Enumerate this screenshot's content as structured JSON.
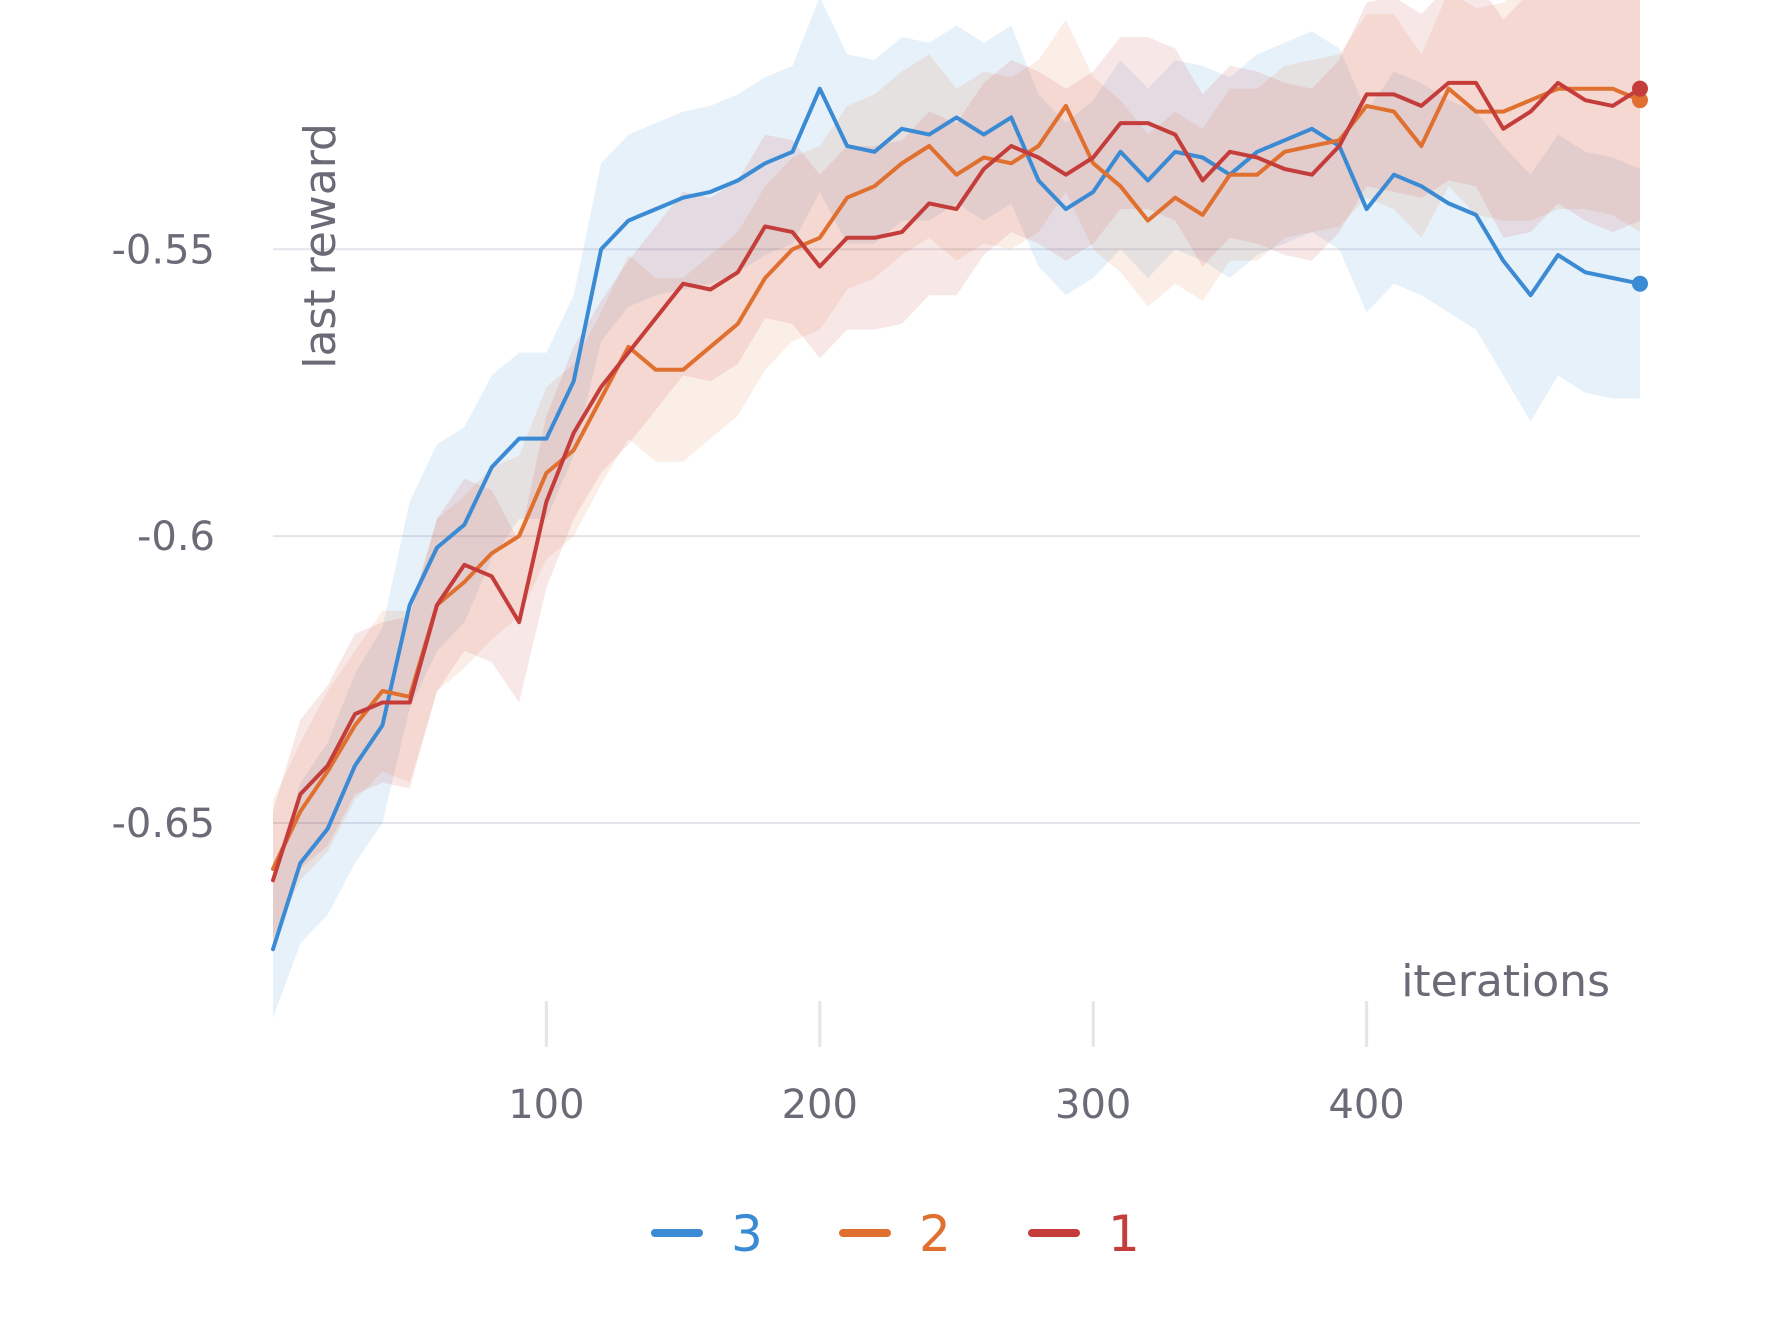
{
  "chart_data": {
    "type": "line",
    "xlabel": "iterations",
    "ylabel": "last reward",
    "xlim": [
      0,
      500
    ],
    "ylim": [
      -0.684,
      -0.517
    ],
    "x_ticks": [
      100,
      200,
      300,
      400
    ],
    "x_tick_labels": [
      "100",
      "200",
      "300",
      "400"
    ],
    "y_ticks": [
      -0.65,
      -0.6,
      -0.55
    ],
    "y_tick_labels": [
      "-0.65",
      "-0.6",
      "-0.55"
    ],
    "grid": "horizontal",
    "legend_position": "bottom-center",
    "series": [
      {
        "name": "3",
        "color": "#3b8bd4",
        "x": [
          0,
          10,
          20,
          30,
          40,
          50,
          60,
          70,
          80,
          90,
          100,
          110,
          120,
          130,
          140,
          150,
          160,
          170,
          180,
          190,
          200,
          210,
          220,
          230,
          240,
          250,
          260,
          270,
          280,
          290,
          300,
          310,
          320,
          330,
          340,
          350,
          360,
          370,
          380,
          390,
          400,
          410,
          420,
          430,
          440,
          450,
          460,
          470,
          480,
          490,
          500
        ],
        "y": [
          -0.672,
          -0.657,
          -0.651,
          -0.64,
          -0.633,
          -0.612,
          -0.602,
          -0.598,
          -0.588,
          -0.583,
          -0.583,
          -0.573,
          -0.55,
          -0.545,
          -0.543,
          -0.541,
          -0.54,
          -0.538,
          -0.535,
          -0.533,
          -0.522,
          -0.532,
          -0.533,
          -0.529,
          -0.53,
          -0.527,
          -0.53,
          -0.527,
          -0.538,
          -0.543,
          -0.54,
          -0.533,
          -0.538,
          -0.533,
          -0.534,
          -0.537,
          -0.533,
          -0.531,
          -0.529,
          -0.532,
          -0.543,
          -0.537,
          -0.539,
          -0.542,
          -0.544,
          -0.552,
          -0.558,
          -0.551,
          -0.554,
          -0.555,
          -0.556
        ],
        "band_low": [
          -0.684,
          -0.671,
          -0.666,
          -0.657,
          -0.65,
          -0.63,
          -0.62,
          -0.615,
          -0.604,
          -0.597,
          -0.597,
          -0.586,
          -0.566,
          -0.56,
          -0.558,
          -0.557,
          -0.556,
          -0.554,
          -0.551,
          -0.549,
          -0.54,
          -0.549,
          -0.549,
          -0.545,
          -0.545,
          -0.542,
          -0.545,
          -0.542,
          -0.553,
          -0.558,
          -0.555,
          -0.55,
          -0.555,
          -0.55,
          -0.552,
          -0.555,
          -0.551,
          -0.549,
          -0.547,
          -0.55,
          -0.561,
          -0.556,
          -0.558,
          -0.561,
          -0.564,
          -0.572,
          -0.58,
          -0.572,
          -0.575,
          -0.576,
          -0.576
        ],
        "band_high": [
          -0.661,
          -0.643,
          -0.636,
          -0.624,
          -0.616,
          -0.594,
          -0.584,
          -0.581,
          -0.572,
          -0.568,
          -0.568,
          -0.558,
          -0.535,
          -0.53,
          -0.528,
          -0.526,
          -0.525,
          -0.523,
          -0.52,
          -0.518,
          -0.506,
          -0.516,
          -0.517,
          -0.513,
          -0.514,
          -0.511,
          -0.514,
          -0.511,
          -0.523,
          -0.528,
          -0.524,
          -0.517,
          -0.522,
          -0.517,
          -0.518,
          -0.52,
          -0.516,
          -0.514,
          -0.512,
          -0.515,
          -0.526,
          -0.519,
          -0.521,
          -0.524,
          -0.526,
          -0.532,
          -0.537,
          -0.53,
          -0.533,
          -0.534,
          -0.536
        ]
      },
      {
        "name": "2",
        "color": "#e0702f",
        "x": [
          0,
          10,
          20,
          30,
          40,
          50,
          60,
          70,
          80,
          90,
          100,
          110,
          120,
          130,
          140,
          150,
          160,
          170,
          180,
          190,
          200,
          210,
          220,
          230,
          240,
          250,
          260,
          270,
          280,
          290,
          300,
          310,
          320,
          330,
          340,
          350,
          360,
          370,
          380,
          390,
          400,
          410,
          420,
          430,
          440,
          450,
          460,
          470,
          480,
          490,
          500
        ],
        "y": [
          -0.658,
          -0.648,
          -0.641,
          -0.633,
          -0.627,
          -0.628,
          -0.612,
          -0.608,
          -0.603,
          -0.6,
          -0.589,
          -0.585,
          -0.576,
          -0.567,
          -0.571,
          -0.571,
          -0.567,
          -0.563,
          -0.555,
          -0.55,
          -0.548,
          -0.541,
          -0.539,
          -0.535,
          -0.532,
          -0.537,
          -0.534,
          -0.535,
          -0.532,
          -0.525,
          -0.535,
          -0.539,
          -0.545,
          -0.541,
          -0.544,
          -0.537,
          -0.537,
          -0.533,
          -0.532,
          -0.531,
          -0.525,
          -0.526,
          -0.532,
          -0.522,
          -0.526,
          -0.526,
          -0.524,
          -0.522,
          -0.522,
          -0.522,
          -0.524
        ],
        "band_low": [
          -0.67,
          -0.66,
          -0.655,
          -0.646,
          -0.641,
          -0.643,
          -0.627,
          -0.623,
          -0.618,
          -0.614,
          -0.604,
          -0.6,
          -0.591,
          -0.583,
          -0.587,
          -0.587,
          -0.583,
          -0.579,
          -0.571,
          -0.566,
          -0.564,
          -0.557,
          -0.555,
          -0.551,
          -0.548,
          -0.552,
          -0.549,
          -0.55,
          -0.547,
          -0.54,
          -0.55,
          -0.554,
          -0.56,
          -0.556,
          -0.559,
          -0.552,
          -0.552,
          -0.548,
          -0.547,
          -0.546,
          -0.541,
          -0.543,
          -0.548,
          -0.539,
          -0.544,
          -0.545,
          -0.545,
          -0.543,
          -0.543,
          -0.544,
          -0.547
        ],
        "band_high": [
          -0.646,
          -0.636,
          -0.627,
          -0.62,
          -0.613,
          -0.613,
          -0.597,
          -0.593,
          -0.588,
          -0.586,
          -0.574,
          -0.57,
          -0.561,
          -0.551,
          -0.555,
          -0.555,
          -0.551,
          -0.547,
          -0.539,
          -0.534,
          -0.532,
          -0.525,
          -0.523,
          -0.519,
          -0.516,
          -0.522,
          -0.519,
          -0.52,
          -0.517,
          -0.51,
          -0.52,
          -0.524,
          -0.53,
          -0.526,
          -0.529,
          -0.522,
          -0.522,
          -0.518,
          -0.517,
          -0.516,
          -0.509,
          -0.509,
          -0.516,
          -0.505,
          -0.508,
          -0.507,
          -0.503,
          -0.501,
          -0.501,
          -0.5,
          -0.501
        ]
      },
      {
        "name": "1",
        "color": "#c43d3a",
        "x": [
          0,
          10,
          20,
          30,
          40,
          50,
          60,
          70,
          80,
          90,
          100,
          110,
          120,
          130,
          140,
          150,
          160,
          170,
          180,
          190,
          200,
          210,
          220,
          230,
          240,
          250,
          260,
          270,
          280,
          290,
          300,
          310,
          320,
          330,
          340,
          350,
          360,
          370,
          380,
          390,
          400,
          410,
          420,
          430,
          440,
          450,
          460,
          470,
          480,
          490,
          500
        ],
        "y": [
          -0.66,
          -0.645,
          -0.64,
          -0.631,
          -0.629,
          -0.629,
          -0.612,
          -0.605,
          -0.607,
          -0.615,
          -0.594,
          -0.582,
          -0.574,
          -0.568,
          -0.562,
          -0.556,
          -0.557,
          -0.554,
          -0.546,
          -0.547,
          -0.553,
          -0.548,
          -0.548,
          -0.547,
          -0.542,
          -0.543,
          -0.536,
          -0.532,
          -0.534,
          -0.537,
          -0.534,
          -0.528,
          -0.528,
          -0.53,
          -0.538,
          -0.533,
          -0.534,
          -0.536,
          -0.537,
          -0.532,
          -0.523,
          -0.523,
          -0.525,
          -0.521,
          -0.521,
          -0.529,
          -0.526,
          -0.521,
          -0.524,
          -0.525,
          -0.522
        ],
        "band_low": [
          -0.672,
          -0.658,
          -0.654,
          -0.645,
          -0.643,
          -0.644,
          -0.627,
          -0.62,
          -0.622,
          -0.629,
          -0.609,
          -0.597,
          -0.589,
          -0.584,
          -0.578,
          -0.572,
          -0.573,
          -0.57,
          -0.562,
          -0.563,
          -0.569,
          -0.564,
          -0.564,
          -0.563,
          -0.558,
          -0.558,
          -0.551,
          -0.547,
          -0.549,
          -0.552,
          -0.549,
          -0.543,
          -0.543,
          -0.545,
          -0.553,
          -0.548,
          -0.549,
          -0.551,
          -0.552,
          -0.547,
          -0.539,
          -0.54,
          -0.541,
          -0.538,
          -0.539,
          -0.548,
          -0.547,
          -0.542,
          -0.545,
          -0.547,
          -0.545
        ],
        "band_high": [
          -0.648,
          -0.632,
          -0.626,
          -0.617,
          -0.615,
          -0.614,
          -0.597,
          -0.59,
          -0.592,
          -0.601,
          -0.579,
          -0.567,
          -0.559,
          -0.552,
          -0.546,
          -0.54,
          -0.541,
          -0.538,
          -0.53,
          -0.531,
          -0.537,
          -0.532,
          -0.532,
          -0.531,
          -0.526,
          -0.528,
          -0.521,
          -0.517,
          -0.519,
          -0.522,
          -0.519,
          -0.513,
          -0.513,
          -0.515,
          -0.523,
          -0.518,
          -0.519,
          -0.521,
          -0.522,
          -0.517,
          -0.507,
          -0.506,
          -0.509,
          -0.504,
          -0.503,
          -0.51,
          -0.505,
          -0.5,
          -0.503,
          -0.503,
          -0.499
        ]
      }
    ]
  }
}
